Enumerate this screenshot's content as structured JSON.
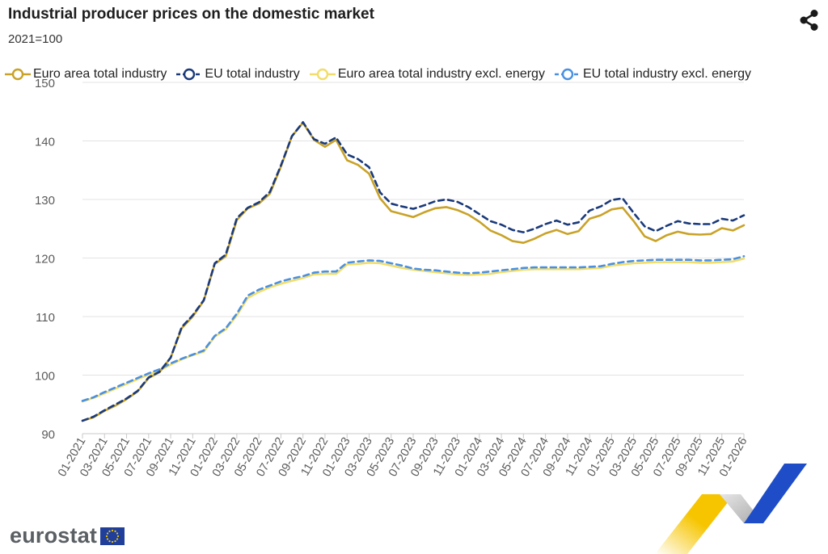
{
  "header": {
    "title": "Industrial producer prices on the domestic market",
    "subtitle": "2021=100"
  },
  "branding": {
    "logo_text": "eurostat"
  },
  "icons": {
    "share": "share-icon",
    "logo_flag": "eu-flag-icon"
  },
  "colors": {
    "euro_area_total": "#c9a227",
    "eu_total": "#1a3a7a",
    "euro_area_excl": "#f2dd6a",
    "eu_excl": "#4a90e2",
    "grid": "#e3e3e3",
    "axis_text": "#5a5a5a",
    "logo_text": "#5a5f64",
    "deco_yellow": "#f6c500",
    "deco_blue": "#1f4dc8",
    "deco_grey": "#c8c8c8"
  },
  "chart_data": {
    "type": "line",
    "title": "Industrial producer prices on the domestic market",
    "subtitle": "2021=100",
    "ylim": [
      90,
      150
    ],
    "yticks": [
      90,
      100,
      110,
      120,
      130,
      140,
      150
    ],
    "grid": true,
    "legend_position": "top",
    "x": [
      "01-2021",
      "02-2021",
      "03-2021",
      "04-2021",
      "05-2021",
      "06-2021",
      "07-2021",
      "08-2021",
      "09-2021",
      "10-2021",
      "11-2021",
      "12-2021",
      "01-2022",
      "02-2022",
      "03-2022",
      "04-2022",
      "05-2022",
      "06-2022",
      "07-2022",
      "08-2022",
      "09-2022",
      "10-2022",
      "11-2022",
      "12-2022",
      "01-2023",
      "02-2023",
      "03-2023",
      "04-2023",
      "05-2023",
      "06-2023",
      "07-2023",
      "08-2023",
      "09-2023",
      "10-2023",
      "11-2023",
      "12-2023",
      "01-2024",
      "02-2024",
      "03-2024",
      "04-2024",
      "05-2024",
      "06-2024",
      "07-2024",
      "08-2024",
      "09-2024",
      "10-2024",
      "11-2024",
      "12-2024",
      "01-2025",
      "02-2025",
      "03-2025",
      "04-2025",
      "05-2025",
      "06-2025",
      "07-2025",
      "08-2025",
      "09-2025",
      "10-2025",
      "11-2025",
      "12-2025",
      "01-2026"
    ],
    "x_tick_labels": [
      "01-2021",
      "03-2021",
      "05-2021",
      "07-2021",
      "09-2021",
      "11-2021",
      "01-2022",
      "03-2022",
      "05-2022",
      "07-2022",
      "09-2022",
      "11-2022",
      "01-2023",
      "03-2023",
      "05-2023",
      "07-2023",
      "09-2023",
      "11-2023",
      "01-2024",
      "03-2024",
      "05-2024",
      "07-2024",
      "09-2024",
      "11-2024",
      "01-2025",
      "03-2025",
      "05-2025",
      "07-2025",
      "09-2025",
      "11-2025",
      "01-2026"
    ],
    "series": [
      {
        "name": "Euro area total industry",
        "color": "#c9a227",
        "style": "solid",
        "values": [
          92.2,
          92.8,
          93.9,
          94.8,
          95.9,
          97.2,
          99.5,
          100.5,
          103.0,
          108.0,
          110.0,
          112.7,
          119.0,
          120.3,
          126.5,
          128.5,
          129.3,
          131.0,
          135.6,
          140.8,
          143.1,
          140.2,
          139.0,
          140.2,
          136.7,
          135.9,
          134.4,
          130.2,
          128.0,
          127.5,
          127.0,
          127.8,
          128.5,
          128.7,
          128.2,
          127.4,
          126.2,
          124.7,
          123.9,
          122.9,
          122.6,
          123.3,
          124.2,
          124.8,
          124.1,
          124.6,
          126.7,
          127.3,
          128.3,
          128.6,
          126.3,
          123.7,
          122.9,
          123.9,
          124.5,
          124.1,
          124.0,
          124.1,
          125.1,
          124.7,
          125.6
        ]
      },
      {
        "name": "EU total industry",
        "color": "#1a3a7a",
        "style": "dashed",
        "values": [
          92.2,
          92.9,
          94.0,
          95.0,
          96.0,
          97.3,
          99.6,
          100.6,
          103.0,
          108.2,
          110.2,
          112.8,
          119.1,
          120.6,
          126.8,
          128.6,
          129.5,
          131.3,
          135.8,
          140.8,
          143.2,
          140.3,
          139.5,
          140.6,
          137.7,
          136.9,
          135.5,
          131.2,
          129.3,
          128.8,
          128.4,
          129.0,
          129.7,
          130.0,
          129.6,
          128.7,
          127.5,
          126.3,
          125.7,
          124.8,
          124.4,
          125.0,
          125.8,
          126.4,
          125.7,
          126.1,
          128.1,
          128.8,
          129.9,
          130.2,
          127.7,
          125.4,
          124.6,
          125.5,
          126.3,
          125.9,
          125.8,
          125.8,
          126.7,
          126.4,
          127.3
        ]
      },
      {
        "name": "Euro area total industry excl. energy",
        "color": "#f2dd6a",
        "style": "solid",
        "values": [
          95.5,
          96.1,
          96.9,
          97.7,
          98.5,
          99.3,
          100.1,
          100.8,
          101.8,
          102.7,
          103.4,
          104.0,
          106.6,
          107.8,
          110.2,
          113.2,
          114.2,
          115.0,
          115.6,
          116.1,
          116.6,
          117.2,
          117.3,
          117.3,
          118.9,
          119.0,
          119.2,
          119.1,
          118.7,
          118.3,
          118.0,
          117.8,
          117.6,
          117.4,
          117.2,
          117.1,
          117.2,
          117.3,
          117.6,
          117.8,
          118.0,
          118.1,
          118.1,
          118.1,
          118.1,
          118.1,
          118.2,
          118.3,
          118.7,
          118.9,
          119.1,
          119.2,
          119.3,
          119.3,
          119.3,
          119.3,
          119.2,
          119.2,
          119.3,
          119.4,
          119.9
        ]
      },
      {
        "name": "EU total industry excl. energy",
        "color": "#4a90e2",
        "style": "dashed",
        "values": [
          95.6,
          96.2,
          97.1,
          97.9,
          98.7,
          99.5,
          100.3,
          101.0,
          102.0,
          102.8,
          103.5,
          104.2,
          106.7,
          108.0,
          110.5,
          113.6,
          114.6,
          115.3,
          116.0,
          116.5,
          116.9,
          117.5,
          117.7,
          117.7,
          119.2,
          119.4,
          119.6,
          119.5,
          119.1,
          118.7,
          118.2,
          118.0,
          117.9,
          117.7,
          117.5,
          117.4,
          117.5,
          117.7,
          117.9,
          118.1,
          118.3,
          118.4,
          118.4,
          118.4,
          118.4,
          118.4,
          118.5,
          118.6,
          119.0,
          119.3,
          119.5,
          119.6,
          119.7,
          119.7,
          119.7,
          119.7,
          119.6,
          119.6,
          119.7,
          119.8,
          120.3
        ]
      }
    ]
  }
}
